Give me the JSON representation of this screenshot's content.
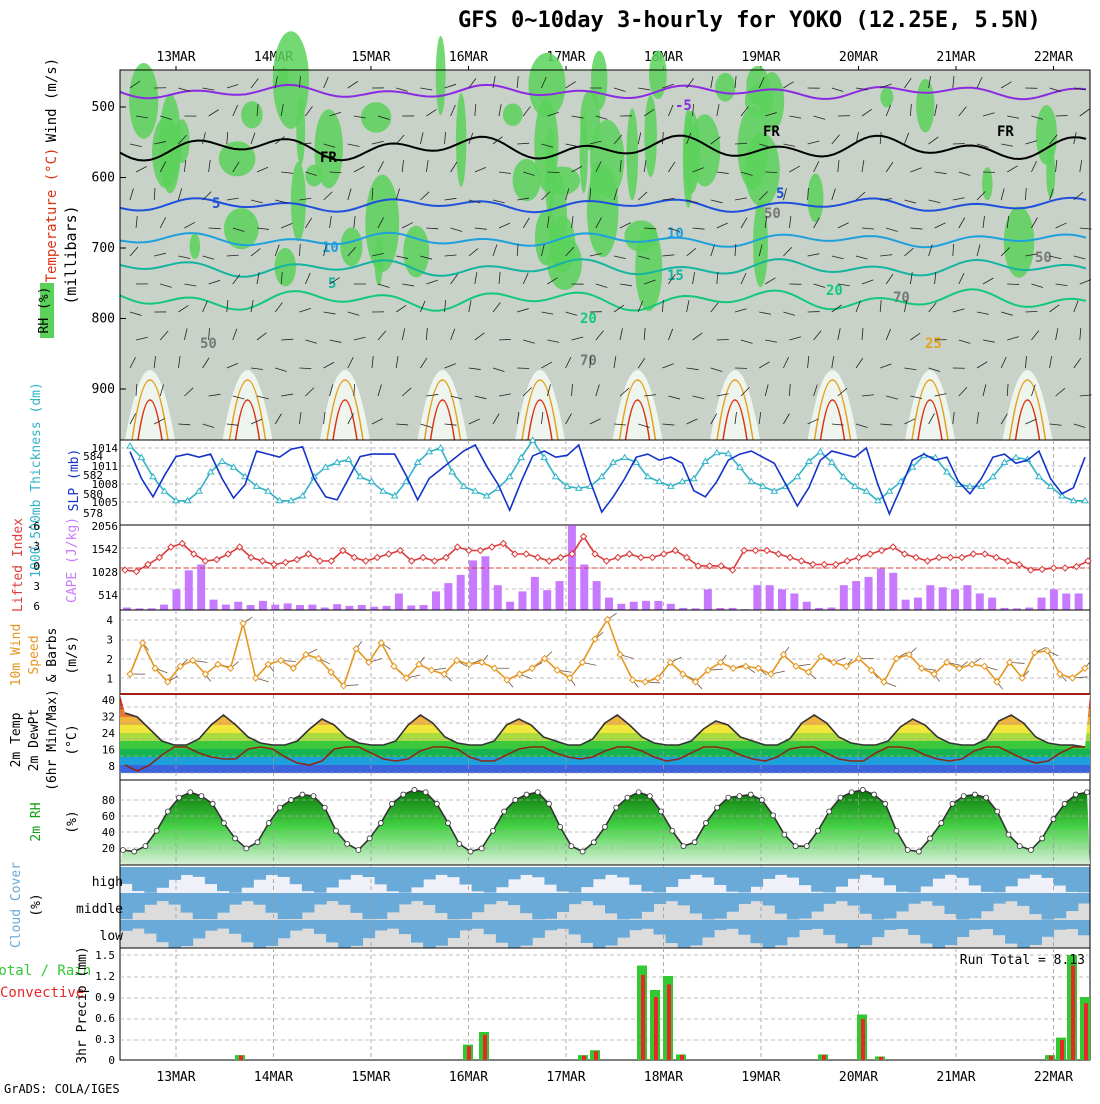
{
  "title": "GFS 0~10day 3-hourly for YOKO (12.25E, 5.5N)",
  "credit": "GrADS: COLA/IGES",
  "run_total": "Run Total = 8.13",
  "colors": {
    "rh_light": "#eef5ee",
    "rh_mid": "#c8d2c8",
    "rh_dark": "#b4c0b4",
    "rh_green": "#5ad25a",
    "temp_purple": "#8a2be2",
    "temp_blue": "#1e50dc",
    "temp_cyan": "#1ea0dc",
    "temp_teal": "#14b4a0",
    "temp_green": "#14c87a",
    "temp_orange": "#e6a01e",
    "temp_red": "#dc3214",
    "slp": "#1432c8",
    "thickness": "#32b4c8",
    "lifted": "#dc3c3c",
    "cape": "#c87aff",
    "wind10m": "#e6961e",
    "temp2m": "#c83200",
    "dewpt": "#8c2814",
    "rh2m": "#14a014",
    "cloud": "#6aaad8",
    "cloud_bg": "#dcdcdc",
    "precip_total": "#32c832",
    "precip_conv": "#e62828"
  },
  "x_labels": [
    "13MAR",
    "14MAR",
    "15MAR",
    "16MAR",
    "17MAR",
    "18MAR",
    "19MAR",
    "20MAR",
    "21MAR",
    "22MAR"
  ],
  "panels": {
    "upper": {
      "ylabel": "(millibars)",
      "legend": [
        "Wind (m/s)",
        "Temperature (°C)",
        "RH (%)"
      ],
      "y_ticks": [
        "500",
        "600",
        "700",
        "800",
        "900"
      ],
      "contour_labels": [
        "-5",
        "FR",
        "FR",
        "FR",
        "5",
        "5",
        "10",
        "10",
        "5",
        "15",
        "20",
        "20",
        "25",
        "50",
        "50",
        "50",
        "70",
        "70"
      ]
    },
    "slp": {
      "label_thickness": "1000-500mb Thickness (dm)",
      "label_slp": "SLP (mb)",
      "thick_ticks": [
        "584",
        "582",
        "580",
        "578"
      ],
      "slp_ticks": [
        "1014",
        "1011",
        "1008",
        "1005"
      ]
    },
    "cape": {
      "label_li": "Lifted Index",
      "label_cape": "CAPE (J/kg)",
      "li_ticks": [
        "-6",
        "-3",
        "0",
        "3",
        "6"
      ],
      "cape_ticks": [
        "2056",
        "1542",
        "1028",
        "514"
      ]
    },
    "wind": {
      "label": "10m Wind Speed & Barbs (m/s)",
      "label_parts": [
        "10m Wind",
        "Speed",
        "& Barbs"
      ],
      "unit": "(m/s)",
      "ticks": [
        "4",
        "3",
        "2",
        "1"
      ]
    },
    "temp2m": {
      "label_parts": [
        "2m Temp",
        "2m DewPt",
        "(6hr Min/Max)"
      ],
      "unit": "(°C)",
      "ticks": [
        "40",
        "32",
        "24",
        "16",
        "8"
      ]
    },
    "rh2m": {
      "label": "2m RH",
      "unit": "(%)",
      "ticks": [
        "80",
        "60",
        "40",
        "20"
      ]
    },
    "cloud": {
      "label": "Cloud Cover (%)",
      "label_parts": [
        "Cloud Cover",
        "(%)"
      ],
      "levels": [
        "high",
        "middle",
        "low"
      ]
    },
    "precip": {
      "label_left_1": "Total / Rain",
      "label_left_2": "Convective",
      "label_y": "3hr Precip (mm)",
      "ticks": [
        "1.5",
        "1.2",
        "0.9",
        "0.6",
        "0.3",
        "0"
      ]
    }
  },
  "chart_data": {
    "type": "line",
    "title": "GFS 0~10day 3-hourly for YOKO (12.25E, 5.5N)",
    "x_unit": "forecast step (3-hourly)",
    "slp_mb": [
      1013.4,
      1009.0,
      1006.0,
      1009.5,
      1012.6,
      1013.0,
      1012.5,
      1013.0,
      1009.0,
      1005.8,
      1008.0,
      1013.5,
      1013.0,
      1012.5,
      1013.8,
      1014.2,
      1009.0,
      1006.0,
      1005.5,
      1009.0,
      1012.6,
      1013.0,
      1013.0,
      1013.0,
      1009.5,
      1005.5,
      1009.0,
      1010.5,
      1012.0,
      1013.5,
      1014.5,
      1011.0,
      1008.0,
      1003.8,
      1008.5,
      1012.7,
      1013.5,
      1012.5,
      1012.8,
      1014.5,
      1008.5,
      1003.5,
      1006.0,
      1009.0,
      1012.5,
      1013.0,
      1012.0,
      1012.5,
      1011.5,
      1007.0,
      1006.0,
      1008.5,
      1012.0,
      1013.0,
      1013.5,
      1012.5,
      1011.5,
      1008.0,
      1004.5,
      1007.5,
      1012.0,
      1013.5,
      1013.0,
      1012.5,
      1014.0,
      1008.0,
      1003.2,
      1007.5,
      1012.0,
      1013.0,
      1012.0,
      1012.5,
      1008.5,
      1006.5,
      1009.0,
      1012.5,
      1013.0,
      1011.5,
      1012.0,
      1013.5,
      1009.0,
      1006.5,
      1007.5,
      1012.5
    ],
    "thickness_dm": [
      584.2,
      583.0,
      581.0,
      579.5,
      578.5,
      578.5,
      579.5,
      581.5,
      582.6,
      582.0,
      581.0,
      580.0,
      579.5,
      578.5,
      578.5,
      579.0,
      581.0,
      582.0,
      582.5,
      582.8,
      581.0,
      580.5,
      579.5,
      579.0,
      580.5,
      582.5,
      583.6,
      584.0,
      581.5,
      580.0,
      579.5,
      579.0,
      579.8,
      581.0,
      583.0,
      584.8,
      583.0,
      581.0,
      580.0,
      579.8,
      580.0,
      581.0,
      582.5,
      583.0,
      582.5,
      581.0,
      580.5,
      580.0,
      580.5,
      580.8,
      582.6,
      583.5,
      583.4,
      582.0,
      580.5,
      580.0,
      579.5,
      580.0,
      581.0,
      582.6,
      583.6,
      582.5,
      581.0,
      580.0,
      579.5,
      578.5,
      579.5,
      580.5,
      582.0,
      583.2,
      583.0,
      581.5,
      580.2,
      580.0,
      580.0,
      581.0,
      582.5,
      583.0,
      582.8,
      581.0,
      580.0,
      579.0,
      578.5,
      578.5
    ],
    "lifted_index": [
      0.3,
      0.5,
      -0.5,
      -1.5,
      -3.0,
      -3.5,
      -2.0,
      -1.0,
      -1.2,
      -2.0,
      -3.0,
      -1.5,
      -1.0,
      -0.5,
      -0.8,
      -1.2,
      -2.0,
      -1.0,
      -1.0,
      -2.5,
      -1.5,
      -1.0,
      -1.5,
      -2.0,
      -2.5,
      -1.0,
      -1.5,
      -1.0,
      -1.5,
      -3.0,
      -2.5,
      -2.5,
      -3.0,
      -3.5,
      -2.0,
      -2.0,
      -1.5,
      -1.0,
      -1.5,
      -2.0,
      -4.5,
      -2.0,
      -1.0,
      -1.5,
      -2.0,
      -1.5,
      -1.5,
      -2.0,
      -2.5,
      -1.5,
      -0.3,
      -0.3,
      -0.3,
      0.3,
      -2.5,
      -2.5,
      -2.5,
      -2.0,
      -1.5,
      -1.0,
      -0.5,
      -0.5,
      -0.5,
      -1.0,
      -1.5,
      -2.0,
      -2.5,
      -3.0,
      -2.0,
      -1.5,
      -1.0,
      -1.5,
      -1.5,
      -1.5,
      -2.0,
      -2.0,
      -1.5,
      -1.0,
      -0.5,
      0.3,
      0.2,
      0.0,
      0.0,
      -0.2,
      -1.0
    ],
    "cape_jkg": [
      60,
      40,
      40,
      130,
      500,
      960,
      1100,
      250,
      130,
      200,
      120,
      220,
      130,
      160,
      120,
      130,
      60,
      140,
      100,
      120,
      80,
      100,
      400,
      110,
      120,
      450,
      650,
      850,
      1200,
      1300,
      600,
      200,
      450,
      800,
      480,
      700,
      2050,
      1100,
      700,
      300,
      150,
      200,
      220,
      220,
      150,
      50,
      40,
      500,
      50,
      50,
      20,
      600,
      600,
      500,
      400,
      200,
      50,
      60,
      600,
      700,
      800,
      1000,
      900,
      250,
      300,
      600,
      550,
      500,
      600,
      400,
      300,
      50,
      40,
      60,
      300,
      500,
      400,
      400
    ],
    "wind10m_ms": [
      1.2,
      2.8,
      1.5,
      0.8,
      1.6,
      1.9,
      1.2,
      1.7,
      1.5,
      3.8,
      1.0,
      1.7,
      1.9,
      1.5,
      2.2,
      2.0,
      1.3,
      0.6,
      2.5,
      1.8,
      2.8,
      1.6,
      1.0,
      1.7,
      1.4,
      1.2,
      1.9,
      1.7,
      1.8,
      1.5,
      0.9,
      1.2,
      1.5,
      2.0,
      1.4,
      1.0,
      1.8,
      3.0,
      4.0,
      2.2,
      0.9,
      0.8,
      1.0,
      1.8,
      1.2,
      0.8,
      1.4,
      1.8,
      1.5,
      1.6,
      1.5,
      1.2,
      2.2,
      1.6,
      1.3,
      2.1,
      1.8,
      1.6,
      2.0,
      1.4,
      0.8,
      2.0,
      2.2,
      1.5,
      1.2,
      1.8,
      1.5,
      1.7,
      1.6,
      0.8,
      1.8,
      1.0,
      2.3,
      2.4,
      1.2,
      1.0,
      1.5
    ],
    "temp2m_c": [
      38,
      36,
      30,
      24,
      22,
      22,
      25,
      32,
      37,
      32,
      26,
      23,
      22,
      22,
      24,
      30,
      35,
      32,
      26,
      23,
      22,
      22,
      24,
      32,
      37,
      33,
      26,
      23,
      22,
      22,
      24,
      32,
      35,
      32,
      26,
      24,
      22,
      22,
      25,
      33,
      37,
      32,
      26,
      23,
      22,
      22,
      24,
      30,
      34,
      32,
      26,
      24,
      22,
      22,
      25,
      33,
      37,
      33,
      26,
      23,
      22,
      22,
      24,
      31,
      35,
      32,
      26,
      23,
      22,
      22,
      25,
      34,
      37,
      33,
      26,
      23,
      22,
      22,
      21
    ],
    "dewpt2m_c": [
      12,
      9,
      12,
      17,
      21,
      21,
      18,
      16,
      15,
      15,
      20,
      21,
      20,
      16,
      13,
      12,
      14,
      20,
      21,
      21,
      18,
      15,
      14,
      15,
      19,
      21,
      21,
      20,
      16,
      14,
      14,
      17,
      20,
      21,
      21,
      18,
      16,
      15,
      16,
      19,
      21,
      21,
      19,
      16,
      14,
      15,
      18,
      21,
      21,
      20,
      17,
      15,
      14,
      16,
      20,
      21,
      21,
      18,
      15,
      14,
      14,
      18,
      21,
      21,
      20,
      17,
      15,
      14,
      15,
      19,
      21,
      21,
      18,
      15,
      13,
      14,
      18,
      21,
      21
    ],
    "rh2m_pct": [
      20,
      18,
      25,
      45,
      70,
      88,
      95,
      90,
      80,
      55,
      35,
      22,
      30,
      55,
      75,
      85,
      92,
      90,
      75,
      45,
      28,
      20,
      35,
      55,
      80,
      92,
      98,
      95,
      80,
      55,
      28,
      18,
      22,
      45,
      70,
      85,
      92,
      95,
      80,
      50,
      25,
      18,
      30,
      50,
      75,
      88,
      95,
      90,
      70,
      45,
      25,
      30,
      55,
      75,
      88,
      90,
      92,
      85,
      65,
      40,
      25,
      25,
      45,
      70,
      88,
      95,
      98,
      92,
      80,
      45,
      20,
      18,
      35,
      55,
      80,
      90,
      92,
      88,
      70,
      40,
      25,
      20,
      35,
      60,
      80,
      92,
      95
    ]
  }
}
